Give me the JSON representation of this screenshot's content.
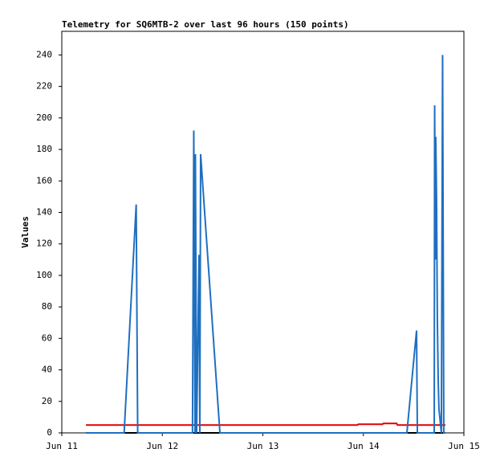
{
  "chart_data": {
    "type": "line",
    "title": "Telemetry for SQ6MTB-2 over last 96 hours (150 points)",
    "y_label": "Values",
    "xlim": [
      0,
      4
    ],
    "xticks": [
      {
        "value": 0,
        "label": "Jun 11"
      },
      {
        "value": 1,
        "label": "Jun 12"
      },
      {
        "value": 2,
        "label": "Jun 13"
      },
      {
        "value": 3,
        "label": "Jun 14"
      },
      {
        "value": 4,
        "label": "Jun 15"
      }
    ],
    "ylim": [
      0,
      255
    ],
    "yticks": [
      0,
      20,
      40,
      60,
      80,
      100,
      120,
      140,
      160,
      180,
      200,
      220,
      240
    ],
    "grid": false,
    "series": [
      {
        "color": "#000000",
        "x": [
          0.24,
          3.816
        ],
        "values": [
          0,
          0
        ]
      },
      {
        "color": "#e00000",
        "x": [
          0.24,
          2.94,
          2.95,
          3.19,
          3.2,
          3.33,
          3.34,
          3.816
        ],
        "values": [
          5,
          5,
          5.5,
          5.5,
          6,
          6,
          5,
          5
        ]
      },
      {
        "color": "#1f6fc0",
        "x": [
          0.24,
          0.62,
          0.74,
          0.755,
          1.3,
          1.313,
          1.325,
          1.329,
          1.341,
          1.365,
          1.373,
          1.381,
          1.573,
          3.433,
          3.529,
          3.537,
          3.705,
          3.709,
          3.717,
          3.72,
          3.728,
          3.736,
          3.744,
          3.752,
          3.776,
          3.788,
          3.8,
          3.816
        ],
        "values": [
          0,
          0,
          145,
          0,
          0,
          192,
          0,
          177,
          0,
          113,
          0,
          177,
          0,
          0,
          65,
          0,
          0,
          208,
          110,
          188,
          148,
          72,
          35,
          15,
          0,
          240,
          0,
          0
        ]
      }
    ]
  }
}
